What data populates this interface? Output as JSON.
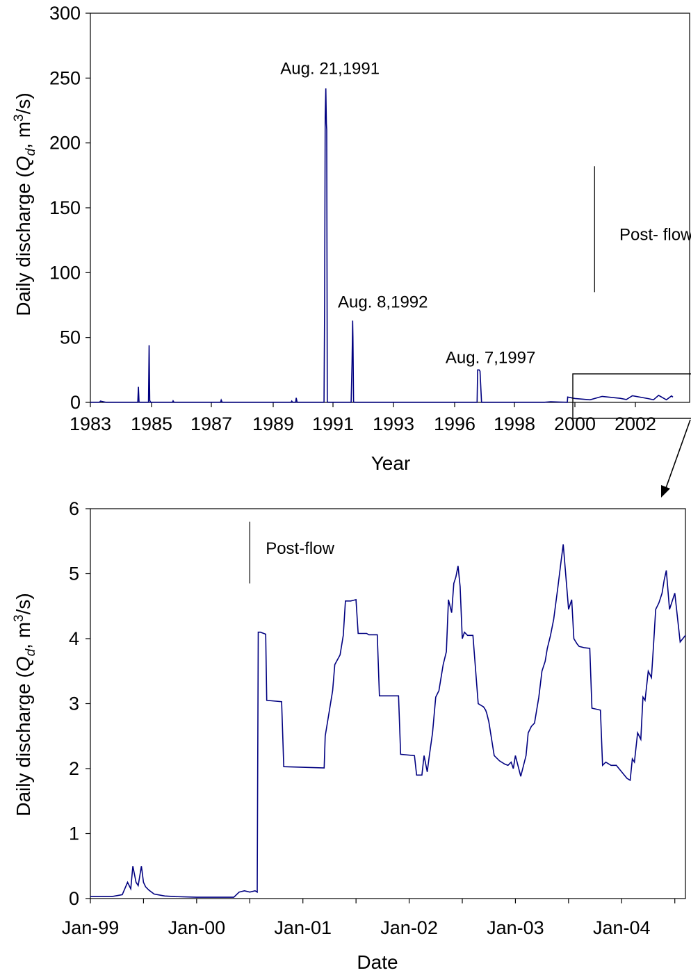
{
  "chart_data": [
    {
      "type": "line",
      "xlabel": "Year",
      "ylabel_parts": [
        "Daily discharge (",
        "Q",
        "d",
        ", m",
        "3",
        "/s)"
      ],
      "ylim": [
        0,
        300
      ],
      "yticks": [
        "0",
        "50",
        "100",
        "150",
        "200",
        "250",
        "300"
      ],
      "xticks": [
        "1983",
        "1985",
        "1987",
        "1989",
        "1991",
        "1993",
        "1996",
        "1998",
        "2000",
        "2002"
      ],
      "grid": false,
      "line_color": "#000080",
      "series": [
        {
          "x": [
            1983.0,
            1983.3,
            1983.33,
            1983.5,
            1983.9,
            1984.55,
            1984.57,
            1984.59,
            1984.61,
            1984.65,
            1984.9,
            1984.92,
            1984.94,
            1984.97,
            1985.0,
            1985.5,
            1985.7,
            1985.72,
            1985.75,
            1986.0,
            1987.0,
            1987.3,
            1987.32,
            1987.35,
            1988.0,
            1989.0,
            1989.5,
            1989.6,
            1989.62,
            1989.65,
            1989.75,
            1989.77,
            1989.8,
            1990.7,
            1990.72,
            1990.74,
            1990.76,
            1990.78,
            1990.79,
            1990.81,
            1990.83,
            1990.86,
            1990.9,
            1991.6,
            1991.63,
            1991.65,
            1991.66,
            1991.68,
            1991.7,
            1991.8,
            1993.0,
            1995.0,
            1996.7,
            1996.75,
            1996.77,
            1996.82,
            1996.85,
            1996.9,
            1997.2,
            1998.0,
            1999.0,
            1999.2,
            1999.5,
            1999.75,
            1999.76,
            2000.0,
            2000.5,
            2000.9,
            2001.5,
            2001.7,
            2001.9,
            2002.5,
            2002.7,
            2002.9,
            2003.2,
            2003.4,
            2003.45
          ],
          "y": [
            0.1,
            0.1,
            1.0,
            0.1,
            0.1,
            0.1,
            12,
            0.5,
            0.1,
            0.1,
            0.1,
            44,
            1.5,
            0.1,
            0.1,
            0.1,
            0.1,
            1.2,
            0.1,
            0.1,
            0.1,
            0.1,
            1.8,
            0.1,
            0.1,
            0.1,
            0.1,
            0.1,
            1.0,
            0.1,
            0.1,
            3.5,
            0.1,
            0.1,
            78,
            220,
            242,
            215,
            210,
            0.5,
            0.1,
            0.1,
            0.1,
            0.1,
            30,
            63,
            50,
            0.5,
            0.1,
            0.1,
            0.1,
            0.1,
            0.1,
            0.1,
            25,
            25,
            24,
            0.1,
            0.1,
            0.1,
            0.1,
            0.5,
            0.2,
            0.1,
            4.1,
            3.0,
            2.0,
            4.6,
            3.1,
            2.2,
            5.1,
            2.9,
            2.0,
            5.4,
            2.0,
            5.0,
            4.0
          ]
        }
      ],
      "annotations": [
        {
          "text": "Aug. 21,1991",
          "x": 1990.9,
          "y": 258
        },
        {
          "text": "Aug. 8,1992",
          "x": 1992.65,
          "y": 78
        },
        {
          "text": "Aug. 7,1997",
          "x": 1997.2,
          "y": 35
        },
        {
          "text": "Post- flow",
          "x": 2002.8,
          "y": 130
        }
      ],
      "marker_line": {
        "x": 2000.65,
        "y_from": 85,
        "y_to": 182
      }
    },
    {
      "type": "line",
      "xlabel": "Date",
      "ylabel_parts": [
        "Daily discharge (",
        "Q",
        "d",
        ", m",
        "3",
        "/s)"
      ],
      "ylim": [
        0,
        6
      ],
      "yticks": [
        "0",
        "1",
        "2",
        "3",
        "4",
        "5",
        "6"
      ],
      "xlim": [
        1999.0,
        2004.6
      ],
      "xtick_values": [
        1999.0,
        2000.0,
        2001.0,
        2002.0,
        2003.0,
        2004.0
      ],
      "xticks": [
        "Jan-99",
        "Jan-00",
        "Jan-01",
        "Jan-02",
        "Jan-03",
        "Jan-04"
      ],
      "grid": false,
      "line_color": "#000080",
      "series": [
        {
          "x": [
            1999.0,
            1999.2,
            1999.3,
            1999.35,
            1999.38,
            1999.4,
            1999.43,
            1999.45,
            1999.48,
            1999.5,
            1999.52,
            1999.55,
            1999.6,
            1999.7,
            1999.8,
            2000.0,
            2000.2,
            2000.35,
            2000.4,
            2000.45,
            2000.5,
            2000.55,
            2000.57,
            2000.58,
            2000.6,
            2000.65,
            2000.66,
            2000.8,
            2000.82,
            2001.2,
            2001.21,
            2001.28,
            2001.3,
            2001.35,
            2001.38,
            2001.4,
            2001.45,
            2001.5,
            2001.52,
            2001.6,
            2001.62,
            2001.7,
            2001.72,
            2001.85,
            2001.9,
            2001.92,
            2002.05,
            2002.07,
            2002.12,
            2002.14,
            2002.17,
            2002.19,
            2002.22,
            2002.25,
            2002.28,
            2002.32,
            2002.35,
            2002.37,
            2002.4,
            2002.42,
            2002.44,
            2002.46,
            2002.48,
            2002.5,
            2002.52,
            2002.55,
            2002.6,
            2002.65,
            2002.7,
            2002.72,
            2002.73,
            2002.75,
            2002.8,
            2002.85,
            2002.9,
            2002.93,
            2002.96,
            2002.98,
            2003.0,
            2003.05,
            2003.1,
            2003.12,
            2003.15,
            2003.18,
            2003.22,
            2003.25,
            2003.28,
            2003.3,
            2003.33,
            2003.36,
            2003.4,
            2003.43,
            2003.45,
            2003.47,
            2003.5,
            2003.53,
            2003.55,
            2003.58,
            2003.6,
            2003.65,
            2003.7,
            2003.72,
            2003.8,
            2003.82,
            2003.85,
            2003.9,
            2003.95,
            2004.0,
            2004.05,
            2004.08,
            2004.1,
            2004.12,
            2004.15,
            2004.18,
            2004.2,
            2004.22,
            2004.25,
            2004.28,
            2004.3,
            2004.32,
            2004.35,
            2004.38,
            2004.4,
            2004.42,
            2004.45,
            2004.5,
            2004.55,
            2004.6
          ],
          "y": [
            0.03,
            0.03,
            0.06,
            0.25,
            0.15,
            0.5,
            0.25,
            0.2,
            0.5,
            0.25,
            0.18,
            0.13,
            0.07,
            0.04,
            0.03,
            0.02,
            0.02,
            0.02,
            0.1,
            0.12,
            0.1,
            0.12,
            0.1,
            4.1,
            4.1,
            4.07,
            3.05,
            3.03,
            2.03,
            2.01,
            2.5,
            3.2,
            3.6,
            3.75,
            4.05,
            4.58,
            4.58,
            4.6,
            4.08,
            4.08,
            4.06,
            4.06,
            3.12,
            3.12,
            3.12,
            2.22,
            2.2,
            1.9,
            1.9,
            2.2,
            1.95,
            2.2,
            2.55,
            3.1,
            3.2,
            3.6,
            3.8,
            4.6,
            4.4,
            4.85,
            4.95,
            5.12,
            4.8,
            4.0,
            4.1,
            4.05,
            4.05,
            3.0,
            2.95,
            2.9,
            2.85,
            2.72,
            2.2,
            2.12,
            2.07,
            2.05,
            2.1,
            2.0,
            2.2,
            1.88,
            2.2,
            2.55,
            2.65,
            2.7,
            3.1,
            3.5,
            3.65,
            3.85,
            4.05,
            4.3,
            4.8,
            5.2,
            5.45,
            5.05,
            4.45,
            4.6,
            4.0,
            3.92,
            3.88,
            3.86,
            3.85,
            2.93,
            2.9,
            2.05,
            2.1,
            2.05,
            2.05,
            1.95,
            1.85,
            1.82,
            2.15,
            2.1,
            2.55,
            2.45,
            3.1,
            3.05,
            3.5,
            3.4,
            3.9,
            4.45,
            4.55,
            4.7,
            4.9,
            5.05,
            4.45,
            4.7,
            3.95,
            4.05
          ]
        }
      ],
      "annotations": [
        {
          "text": "Post-flow",
          "x": 2000.65,
          "y": 5.4
        }
      ],
      "marker_line": {
        "x": 2000.5,
        "y_from": 4.85,
        "y_to": 5.8
      }
    }
  ]
}
